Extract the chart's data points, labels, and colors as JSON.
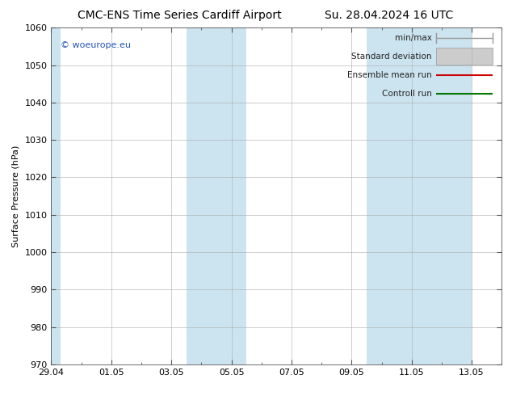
{
  "title_left": "CMC-ENS Time Series Cardiff Airport",
  "title_right": "Su. 28.04.2024 16 UTC",
  "ylabel": "Surface Pressure (hPa)",
  "ylim": [
    970,
    1060
  ],
  "yticks": [
    970,
    980,
    990,
    1000,
    1010,
    1020,
    1030,
    1040,
    1050,
    1060
  ],
  "xlim": [
    0,
    15
  ],
  "x_tick_labels": [
    "29.04",
    "01.05",
    "03.05",
    "05.05",
    "07.05",
    "09.05",
    "11.05",
    "13.05"
  ],
  "x_tick_positions": [
    0,
    2,
    4,
    6,
    8,
    10,
    12,
    14
  ],
  "shaded_bands": [
    {
      "x_start": 0,
      "x_end": 0.3,
      "color": "#cce4f0"
    },
    {
      "x_start": 4.5,
      "x_end": 6.5,
      "color": "#cce4f0"
    },
    {
      "x_start": 10.5,
      "x_end": 14.0,
      "color": "#cce4f0"
    }
  ],
  "background_color": "#ffffff",
  "plot_bg_color": "#ffffff",
  "grid_color": "#aaaaaa",
  "watermark_text": "© woeurope.eu",
  "watermark_color": "#2255bb",
  "legend_items": [
    {
      "label": "min/max",
      "color": "#999999",
      "style": "minmax"
    },
    {
      "label": "Standard deviation",
      "color": "#cccccc",
      "style": "box"
    },
    {
      "label": "Ensemble mean run",
      "color": "#cc0000",
      "style": "line"
    },
    {
      "label": "Controll run",
      "color": "#007700",
      "style": "line"
    }
  ],
  "title_fontsize": 10,
  "axis_fontsize": 8,
  "tick_fontsize": 8,
  "legend_fontsize": 7.5
}
